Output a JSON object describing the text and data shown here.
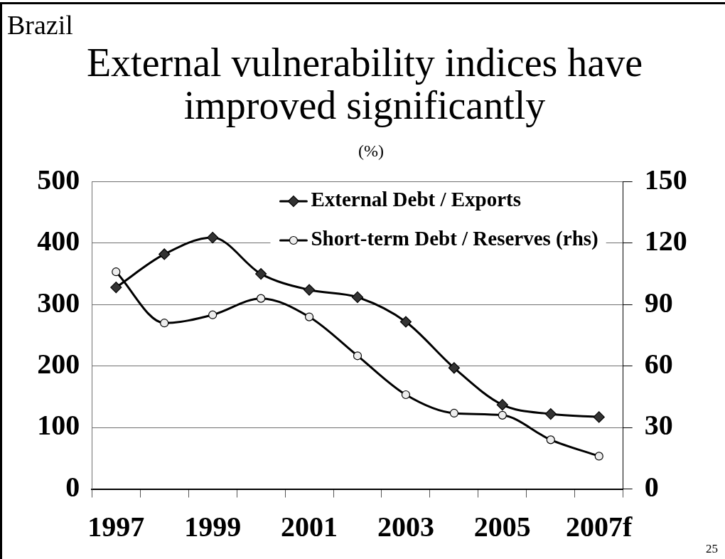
{
  "chart_data": {
    "type": "line",
    "title": "External vulnerability indices have improved significantly",
    "subtitle": "(%)",
    "annotations": [
      "Brazil",
      "25"
    ],
    "categories": [
      "1997",
      null,
      "1999",
      null,
      "2001",
      null,
      "2003",
      null,
      "2005",
      null,
      "2007f"
    ],
    "series": [
      {
        "name": "External Debt / Exports",
        "color": "#000000",
        "marker": "diamond",
        "values": [
          328,
          382,
          409,
          350,
          324,
          312,
          272,
          197,
          137,
          122,
          117
        ]
      },
      {
        "name": "Short-term Debt / Reserves (rhs)",
        "color": "#000000",
        "marker": "circle",
        "axis": "y2",
        "values": [
          106,
          81,
          85,
          93,
          84,
          65,
          46,
          37,
          36,
          24,
          16
        ]
      }
    ],
    "ylim": [
      0,
      500
    ],
    "yticks": [
      0,
      100,
      200,
      300,
      400,
      500
    ],
    "y2lim": [
      0,
      150
    ],
    "y2ticks": [
      0,
      30,
      60,
      90,
      120,
      150
    ],
    "grid": "y",
    "legend": "top right",
    "line_style": "solid"
  }
}
